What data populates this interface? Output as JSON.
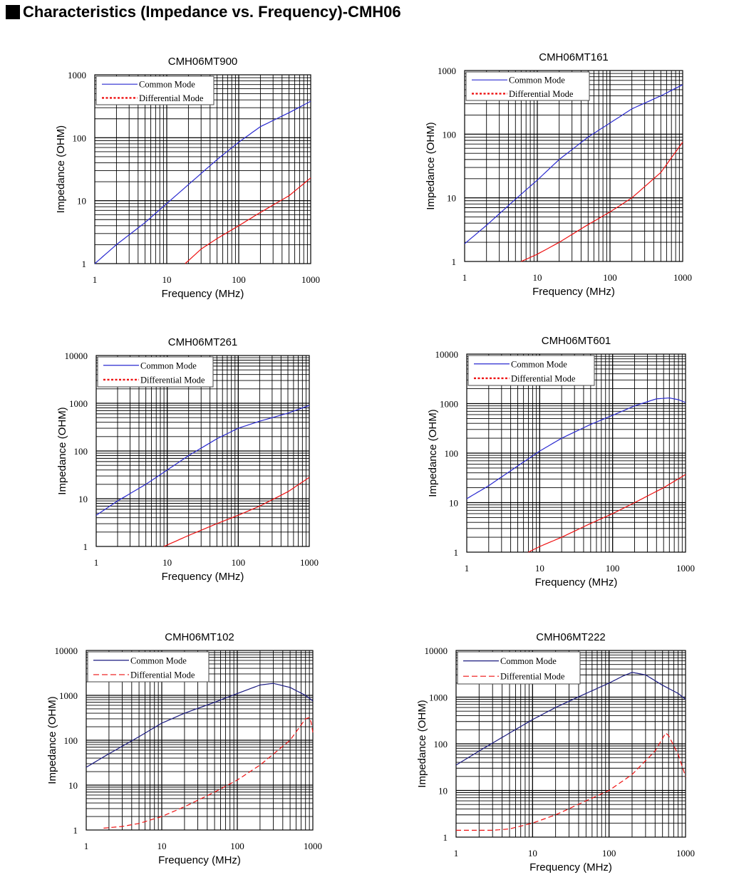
{
  "page": {
    "title": "Characteristics (Impedance vs. Frequency)-CMH06"
  },
  "colors": {
    "common_mode_light": "#2a2ad0",
    "common_mode_dark": "#1a1a80",
    "differential_mode": "#ee1111"
  },
  "chart_data": [
    {
      "type": "line",
      "title": "CMH06MT900",
      "xlabel": "Frequency (MHz)",
      "ylabel": "Impedance (OHM)",
      "x_scale": "log",
      "y_scale": "log",
      "xlim": [
        1,
        1000
      ],
      "ylim": [
        1,
        1000
      ],
      "x_ticks": [
        "1",
        "10",
        "100",
        "1000"
      ],
      "y_ticks": [
        "1",
        "10",
        "100",
        "1000"
      ],
      "grid": true,
      "legend": "top-left",
      "series": [
        {
          "name": "Common Mode",
          "style": "solid",
          "color": "#2a2ad0",
          "x": [
            1,
            2,
            5,
            10,
            20,
            50,
            100,
            200,
            500,
            1000
          ],
          "y": [
            1,
            2,
            4.5,
            9,
            18,
            45,
            85,
            150,
            250,
            380
          ]
        },
        {
          "name": "Differential Mode",
          "style": "dotted",
          "color": "#ee1111",
          "x": [
            18,
            30,
            50,
            100,
            200,
            500,
            1000
          ],
          "y": [
            1,
            1.7,
            2.5,
            4,
            6.5,
            12,
            23
          ]
        }
      ]
    },
    {
      "type": "line",
      "title": "CMH06MT161",
      "xlabel": "Frequency (MHz)",
      "ylabel": "Impedance (OHM)",
      "x_scale": "log",
      "y_scale": "log",
      "xlim": [
        1,
        1000
      ],
      "ylim": [
        1,
        1000
      ],
      "x_ticks": [
        "1",
        "10",
        "100",
        "1000"
      ],
      "y_ticks": [
        "1",
        "10",
        "100",
        "1000"
      ],
      "grid": true,
      "legend": "top-left",
      "series": [
        {
          "name": "Common Mode",
          "style": "solid",
          "color": "#2a2ad0",
          "x": [
            1,
            2,
            5,
            10,
            20,
            50,
            100,
            200,
            500,
            1000
          ],
          "y": [
            1.9,
            3.7,
            9.5,
            19,
            40,
            90,
            150,
            250,
            400,
            600
          ]
        },
        {
          "name": "Differential Mode",
          "style": "dotted",
          "color": "#ee1111",
          "x": [
            6,
            10,
            20,
            50,
            100,
            200,
            500,
            1000
          ],
          "y": [
            1,
            1.3,
            2,
            3.8,
            6,
            10,
            25,
            75
          ]
        }
      ]
    },
    {
      "type": "line",
      "title": "CMH06MT261",
      "xlabel": "Frequency (MHz)",
      "ylabel": "Impedance (OHM)",
      "x_scale": "log",
      "y_scale": "log",
      "xlim": [
        1,
        1000
      ],
      "ylim": [
        1,
        10000
      ],
      "x_ticks": [
        "1",
        "10",
        "100",
        "1000"
      ],
      "y_ticks": [
        "1",
        "10",
        "100",
        "1000",
        "10000"
      ],
      "grid": true,
      "legend": "top-left",
      "series": [
        {
          "name": "Common Mode",
          "style": "solid",
          "color": "#2a2ad0",
          "x": [
            1,
            2,
            5,
            10,
            20,
            50,
            100,
            200,
            500,
            1000
          ],
          "y": [
            4.5,
            9,
            20,
            40,
            80,
            180,
            300,
            420,
            620,
            900
          ]
        },
        {
          "name": "Differential Mode",
          "style": "dotted",
          "color": "#ee1111",
          "x": [
            9,
            20,
            50,
            100,
            200,
            500,
            1000
          ],
          "y": [
            1,
            1.7,
            3,
            4.5,
            7,
            14,
            28
          ]
        }
      ]
    },
    {
      "type": "line",
      "title": "CMH06MT601",
      "xlabel": "Frequency (MHz)",
      "ylabel": "Impedance (OHM)",
      "x_scale": "log",
      "y_scale": "log",
      "xlim": [
        1,
        1000
      ],
      "ylim": [
        1,
        10000
      ],
      "x_ticks": [
        "1",
        "10",
        "100",
        "1000"
      ],
      "y_ticks": [
        "1",
        "10",
        "100",
        "1000",
        "10000"
      ],
      "grid": true,
      "legend": "top-left",
      "series": [
        {
          "name": "Common Mode",
          "style": "solid",
          "color": "#2a2ad0",
          "x": [
            1,
            2,
            5,
            10,
            20,
            50,
            100,
            200,
            400,
            600,
            800,
            1000
          ],
          "y": [
            12,
            22,
            55,
            110,
            200,
            380,
            580,
            900,
            1250,
            1300,
            1200,
            1050
          ]
        },
        {
          "name": "Differential Mode",
          "style": "dotted",
          "color": "#ee1111",
          "x": [
            7,
            10,
            20,
            50,
            100,
            200,
            500,
            1000
          ],
          "y": [
            1,
            1.3,
            2,
            3.8,
            6,
            10,
            20,
            37
          ]
        }
      ]
    },
    {
      "type": "line",
      "title": "CMH06MT102",
      "xlabel": "Frequency (MHz)",
      "ylabel": "Impedance (OHM)",
      "x_scale": "log",
      "y_scale": "log",
      "xlim": [
        1,
        1000
      ],
      "ylim": [
        1,
        10000
      ],
      "x_ticks": [
        "1",
        "10",
        "100",
        "1000"
      ],
      "y_ticks": [
        "1",
        "10",
        "100",
        "1000",
        "10000"
      ],
      "grid": true,
      "legend": "top-left",
      "series": [
        {
          "name": "Common Mode",
          "style": "solid",
          "color": "#1a1a80",
          "x": [
            1,
            2,
            5,
            10,
            20,
            50,
            100,
            200,
            300,
            500,
            800,
            1000
          ],
          "y": [
            25,
            50,
            120,
            240,
            400,
            700,
            1100,
            1700,
            1850,
            1500,
            1000,
            750
          ]
        },
        {
          "name": "Differential Mode",
          "style": "dashed",
          "color": "#ee1111",
          "x": [
            1.7,
            3,
            5,
            10,
            20,
            50,
            100,
            200,
            500,
            800,
            900,
            950,
            1000
          ],
          "y": [
            1.1,
            1.2,
            1.4,
            2,
            3.3,
            7,
            13,
            28,
            100,
            300,
            320,
            250,
            150
          ]
        }
      ]
    },
    {
      "type": "line",
      "title": "CMH06MT222",
      "xlabel": "Frequency (MHz)",
      "ylabel": "Impedance (OHM)",
      "x_scale": "log",
      "y_scale": "log",
      "xlim": [
        1,
        1000
      ],
      "ylim": [
        1,
        10000
      ],
      "x_ticks": [
        "1",
        "10",
        "100",
        "1000"
      ],
      "y_ticks": [
        "1",
        "10",
        "100",
        "1000",
        "10000"
      ],
      "grid": true,
      "legend": "top-left",
      "series": [
        {
          "name": "Common Mode",
          "style": "solid",
          "color": "#1a1a80",
          "x": [
            1,
            2,
            5,
            10,
            20,
            50,
            100,
            150,
            200,
            300,
            500,
            800,
            1000
          ],
          "y": [
            35,
            70,
            170,
            330,
            600,
            1200,
            2000,
            2800,
            3400,
            3000,
            1800,
            1200,
            900
          ]
        },
        {
          "name": "Differential Mode",
          "style": "dashed",
          "color": "#ee1111",
          "x": [
            1,
            3,
            5,
            10,
            20,
            50,
            100,
            200,
            400,
            550,
            600,
            800,
            1000
          ],
          "y": [
            1.4,
            1.4,
            1.5,
            2,
            3,
            6,
            10,
            22,
            70,
            170,
            150,
            60,
            20
          ]
        }
      ]
    }
  ]
}
